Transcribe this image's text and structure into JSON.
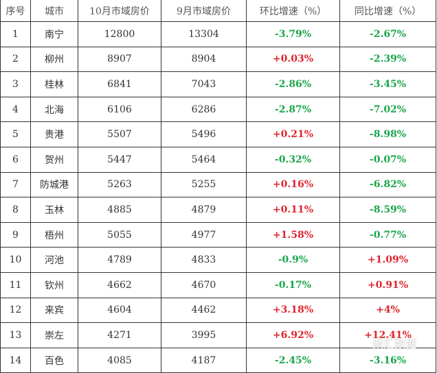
{
  "headers": [
    "序号",
    "城市",
    "10月市域房价",
    "9月市域房价",
    "环比增速（%）",
    "同比增速（%）"
  ],
  "rows": [
    [
      "1",
      "南宁",
      "12800",
      "13304",
      "-3.79%",
      "-2.67%"
    ],
    [
      "2",
      "柳州",
      "8907",
      "8904",
      "+0.03%",
      "-2.39%"
    ],
    [
      "3",
      "桂林",
      "6841",
      "7043",
      "-2.86%",
      "-3.45%"
    ],
    [
      "4",
      "北海",
      "6106",
      "6286",
      "-2.87%",
      "-7.02%"
    ],
    [
      "5",
      "贵港",
      "5507",
      "5496",
      "+0.21%",
      "-8.98%"
    ],
    [
      "6",
      "贺州",
      "5447",
      "5464",
      "-0.32%",
      "-0.07%"
    ],
    [
      "7",
      "防城港",
      "5263",
      "5255",
      "+0.16%",
      "-6.82%"
    ],
    [
      "8",
      "玉林",
      "4885",
      "4879",
      "+0.11%",
      "-8.59%"
    ],
    [
      "9",
      "梧州",
      "5055",
      "4977",
      "+1.58%",
      "-0.77%"
    ],
    [
      "10",
      "河池",
      "4789",
      "4833",
      "-0.9%",
      "+1.09%"
    ],
    [
      "11",
      "钦州",
      "4662",
      "4670",
      "-0.17%",
      "+0.91%"
    ],
    [
      "12",
      "来宾",
      "4604",
      "4462",
      "+3.18%",
      "+4%"
    ],
    [
      "13",
      "崇左",
      "4271",
      "3995",
      "+6.92%",
      "+12.41%"
    ],
    [
      "14",
      "百色",
      "4085",
      "4187",
      "-2.45%",
      "-3.16%"
    ]
  ],
  "colors": {
    "positive": "#e0242c",
    "negative": "#1aa64a"
  },
  "watermark": "聚汇数据"
}
